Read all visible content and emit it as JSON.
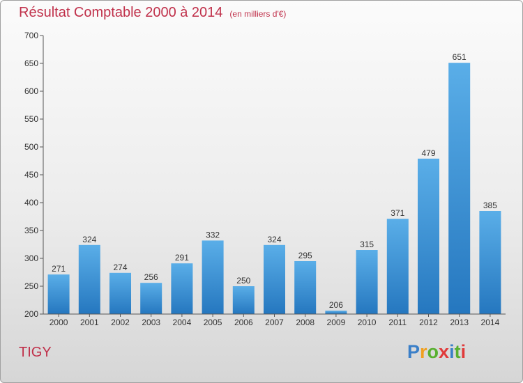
{
  "chart_data": {
    "type": "bar",
    "title": "Résultat Comptable 2000 à 2014",
    "subtitle": "(en milliers d'€)",
    "categories": [
      "2000",
      "2001",
      "2002",
      "2003",
      "2004",
      "2005",
      "2006",
      "2007",
      "2008",
      "2009",
      "2010",
      "2011",
      "2012",
      "2013",
      "2014"
    ],
    "values": [
      271,
      324,
      274,
      256,
      291,
      332,
      250,
      324,
      295,
      206,
      315,
      371,
      479,
      651,
      385
    ],
    "yticks": [
      200,
      250,
      300,
      350,
      400,
      450,
      500,
      550,
      600,
      650,
      700
    ],
    "ylim": [
      200,
      700
    ],
    "xlabel": "",
    "ylabel": "",
    "grid": false,
    "bar_color_top": "#5aaee8",
    "bar_color_bottom": "#2577bf"
  },
  "commune": "TIGY",
  "logo": {
    "letters": [
      "P",
      "r",
      "o",
      "x",
      "i",
      "t",
      "i"
    ],
    "colors": [
      "#3a7fc8",
      "#f0a020",
      "#58b030",
      "#e03a3a",
      "#3a7fc8",
      "#58b030",
      "#e03a3a"
    ]
  }
}
